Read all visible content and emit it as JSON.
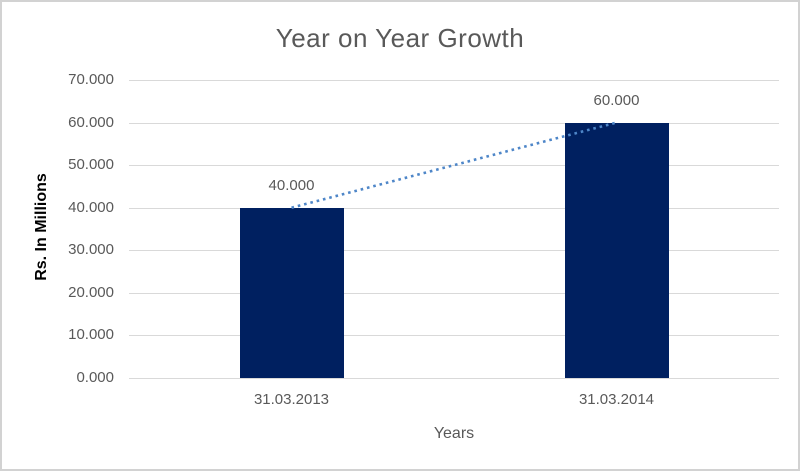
{
  "chart_data": {
    "type": "bar",
    "title": "Year on Year Growth",
    "xlabel": "Years",
    "ylabel": "Rs. In Millions",
    "categories": [
      "31.03.2013",
      "31.03.2014"
    ],
    "values": [
      40,
      60
    ],
    "value_labels": [
      "40.000",
      "60.000"
    ],
    "y_ticks": [
      "0.000",
      "10.000",
      "20.000",
      "30.000",
      "40.000",
      "50.000",
      "60.000",
      "70.000"
    ],
    "ylim": [
      0,
      70
    ],
    "grid": true,
    "legend": "none",
    "trendline": {
      "type": "linear",
      "style": "dotted",
      "from_value": 40,
      "to_value": 60
    },
    "colors": {
      "bar": "#002060",
      "trendline": "#4E86C8",
      "gridline": "#d9d9d9",
      "axis_text": "#595959",
      "title_text": "#595959",
      "y_axis_title_text": "#000000",
      "frame_border": "#d2d2d2",
      "background": "#ffffff"
    }
  }
}
